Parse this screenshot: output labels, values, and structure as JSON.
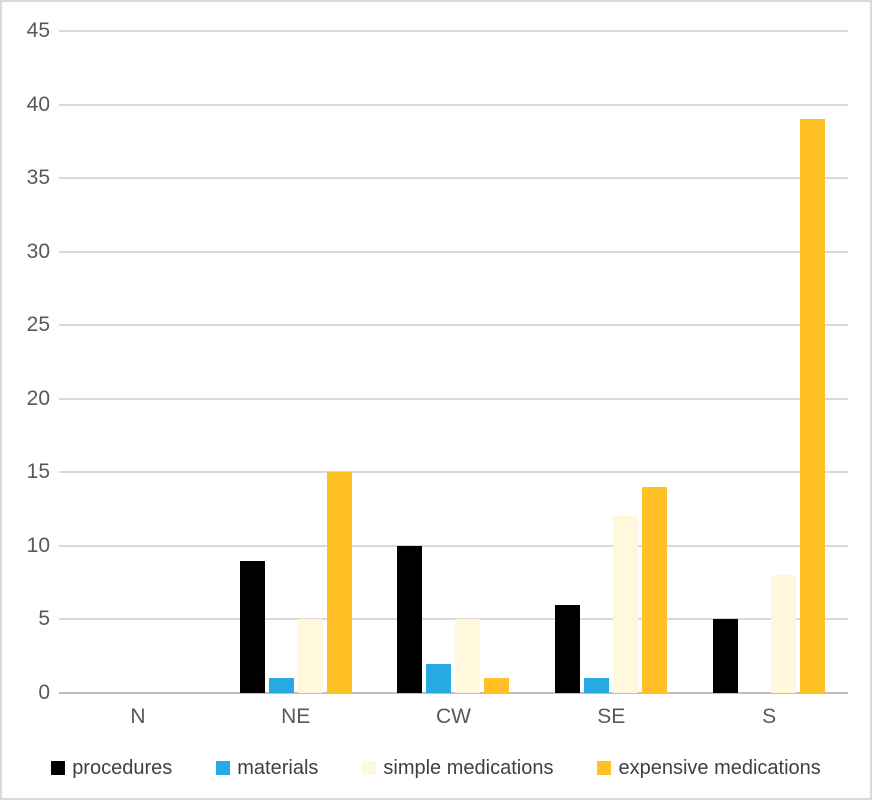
{
  "figure": {
    "background": "#FFFFFF",
    "border_color": "#D9D9D9"
  },
  "chart_data": {
    "type": "bar",
    "title": "",
    "xlabel": "",
    "ylabel": "",
    "categories": [
      "N",
      "NE",
      "CW",
      "SE",
      "S"
    ],
    "series": [
      {
        "name": "procedures",
        "color": "#000000",
        "values": [
          0,
          9,
          10,
          6,
          5
        ]
      },
      {
        "name": "materials",
        "color": "#27AAE1",
        "values": [
          0,
          1,
          2,
          1,
          0
        ]
      },
      {
        "name": "simple medications",
        "color": "#FFF8DC",
        "values": [
          0,
          5,
          5,
          12,
          8
        ]
      },
      {
        "name": "expensive medications",
        "color": "#FFC125",
        "values": [
          0,
          15,
          1,
          14,
          39
        ]
      }
    ],
    "ylim": [
      0,
      45
    ],
    "yticks": [
      0,
      5,
      10,
      15,
      20,
      25,
      30,
      35,
      40,
      45
    ],
    "grid": true,
    "gridline_color": "#D9D9D9",
    "axis_line_color": "#BFBFBF",
    "tick_label_color": "#595959",
    "legend_text_color": "#404040",
    "legend_position": "bottom"
  }
}
